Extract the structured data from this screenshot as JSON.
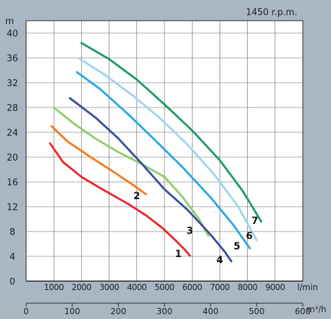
{
  "chart_data": {
    "type": "line",
    "title": "",
    "speed_label": "1450 r.p.m.",
    "y_axis": {
      "label": "m",
      "ylim": [
        0,
        42
      ],
      "ticks": [
        0,
        4,
        8,
        12,
        16,
        20,
        24,
        28,
        32,
        36,
        40
      ],
      "grid": true
    },
    "x_axis_lpm": {
      "unit_label": "l/min",
      "xlim": [
        0,
        10000
      ],
      "ticks": [
        1000,
        2000,
        3000,
        4000,
        5000,
        6000,
        7000,
        8000,
        9000
      ],
      "grid": true
    },
    "x_axis_m3h": {
      "unit_label": "m³/h",
      "xlim": [
        0,
        600
      ],
      "ticks": [
        0,
        100,
        200,
        300,
        400,
        500,
        600
      ]
    },
    "series": [
      {
        "name": "1",
        "color": "#e8262b",
        "x_m3h": [
          52,
          80,
          120,
          170,
          220,
          260,
          295,
          325,
          345,
          355
        ],
        "y": [
          22.2,
          19.2,
          16.8,
          14.6,
          12.5,
          10.6,
          8.6,
          6.5,
          5.0,
          4.1
        ]
      },
      {
        "name": "2",
        "color": "#f47b20",
        "x_m3h": [
          55,
          90,
          140,
          190,
          230,
          260
        ],
        "y": [
          25.0,
          22.5,
          20.0,
          17.6,
          15.6,
          14.0
        ]
      },
      {
        "name": "3",
        "color": "#8fce6b",
        "x_m3h": [
          60,
          100,
          150,
          200,
          250,
          300,
          340,
          375,
          395
        ],
        "y": [
          28.0,
          25.6,
          23.0,
          20.8,
          18.9,
          16.8,
          13.5,
          10.0,
          7.3
        ]
      },
      {
        "name": "4",
        "color": "#3b4ea0",
        "x_m3h": [
          95,
          150,
          200,
          250,
          300,
          350,
          400,
          430,
          445
        ],
        "y": [
          29.5,
          26.4,
          23.0,
          19.0,
          14.8,
          11.5,
          7.5,
          4.8,
          3.2
        ]
      },
      {
        "name": "5",
        "color": "#2aa8e0",
        "x_m3h": [
          110,
          160,
          220,
          280,
          340,
          400,
          450,
          485
        ],
        "y": [
          33.7,
          31.0,
          27.0,
          22.7,
          18.3,
          13.5,
          9.0,
          5.3
        ]
      },
      {
        "name": "6",
        "color": "#9dd5ec",
        "x_m3h": [
          115,
          170,
          230,
          290,
          350,
          410,
          460,
          500
        ],
        "y": [
          35.9,
          33.3,
          30.0,
          26.3,
          22.0,
          17.0,
          12.0,
          6.6
        ]
      },
      {
        "name": "7",
        "color": "#1f9b63",
        "x_m3h": [
          120,
          180,
          240,
          300,
          360,
          420,
          470,
          510
        ],
        "y": [
          38.4,
          35.8,
          32.5,
          28.5,
          24.3,
          19.5,
          14.5,
          9.6
        ]
      }
    ],
    "curve_labels": [
      {
        "text": "1",
        "x_m3h": 330,
        "y": 3.9
      },
      {
        "text": "2",
        "x_m3h": 240,
        "y": 13.2
      },
      {
        "text": "3",
        "x_m3h": 355,
        "y": 7.6
      },
      {
        "text": "4",
        "x_m3h": 420,
        "y": 2.9
      },
      {
        "text": "5",
        "x_m3h": 457,
        "y": 5.1
      },
      {
        "text": "6",
        "x_m3h": 484,
        "y": 6.8
      },
      {
        "text": "7",
        "x_m3h": 496,
        "y": 9.2
      }
    ]
  }
}
